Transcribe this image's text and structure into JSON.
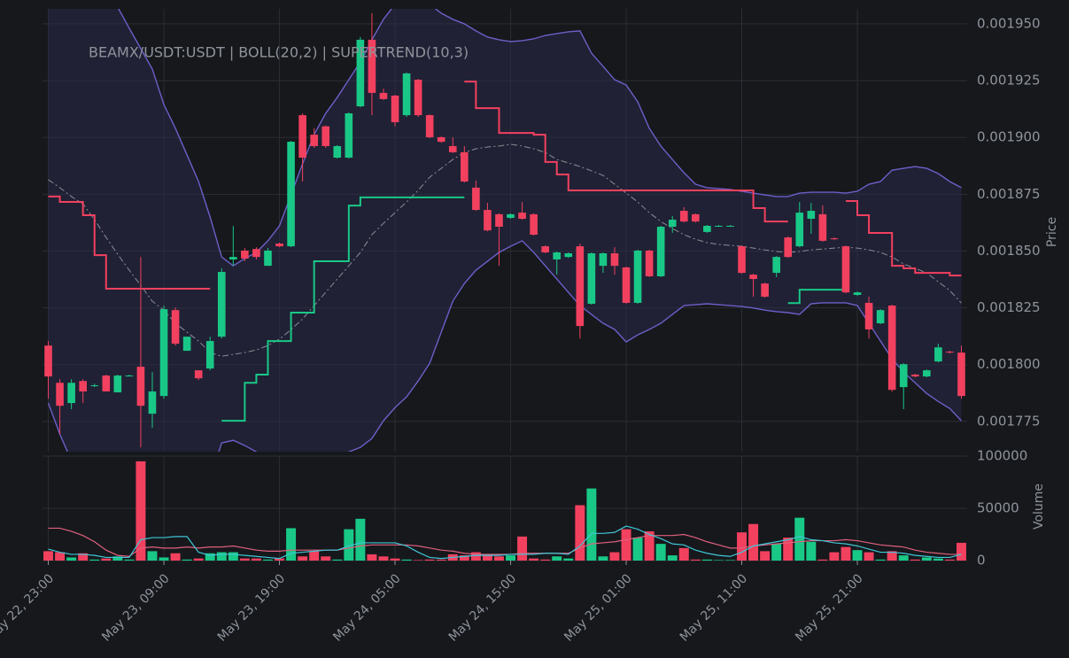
{
  "chart_data": [
    {
      "type": "candlestick",
      "title": "BEAMX/USDT:USDT | BOLL(20,2) | SUPERTREND(10,3)",
      "y_label": "Price",
      "categories": [
        "May 22, 23:00",
        null,
        null,
        null,
        null,
        null,
        null,
        null,
        null,
        null,
        "May 23, 09:00",
        null,
        null,
        null,
        null,
        null,
        null,
        null,
        null,
        null,
        "May 23, 19:00",
        null,
        null,
        null,
        null,
        null,
        null,
        null,
        null,
        null,
        "May 24, 05:00",
        null,
        null,
        null,
        null,
        null,
        null,
        null,
        null,
        null,
        "May 24, 15:00",
        null,
        null,
        null,
        null,
        null,
        null,
        null,
        null,
        null,
        "May 25, 01:00",
        null,
        null,
        null,
        null,
        null,
        null,
        null,
        null,
        null,
        "May 25, 11:00",
        null,
        null,
        null,
        null,
        null,
        null,
        null,
        null,
        null,
        "May 25, 21:00",
        null,
        null,
        null,
        null,
        null,
        null,
        null,
        null,
        null
      ],
      "open": [
        0.0018084,
        0.001792,
        0.0017831,
        0.0017928,
        0.0017909,
        0.0017952,
        0.0017878,
        0.0017952,
        0.0017991,
        0.0017784,
        0.0017862,
        0.001824,
        0.0018061,
        0.0017975,
        0.0017983,
        0.0018123,
        0.0018463,
        0.0018502,
        0.0018509,
        0.0018435,
        0.0018533,
        0.0018521,
        0.0019098,
        0.0019012,
        0.0019049,
        0.0018911,
        0.0018911,
        0.0019137,
        0.001943,
        0.0019196,
        0.0019184,
        0.0019098,
        0.0019254,
        0.0019098,
        0.0019001,
        0.0018962,
        0.0018935,
        0.0018779,
        0.0018681,
        0.0018662,
        0.0018646,
        0.0018669,
        0.0018662,
        0.0018521,
        0.0018463,
        0.0018474,
        0.0018521,
        0.0018268,
        0.0018435,
        0.001849,
        0.0018428,
        0.0018272,
        0.0018502,
        0.0018389,
        0.0018607,
        0.0018677,
        0.0018662,
        0.0018584,
        0.0018611,
        0.0018611,
        0.0018521,
        0.0018396,
        0.0018357,
        0.0018404,
        0.001856,
        0.0018521,
        0.0018642,
        0.0018662,
        0.0018556,
        0.0018521,
        0.0018307,
        0.0018272,
        0.0018182,
        0.001826,
        0.0017901,
        0.0017956,
        0.0017948,
        0.0018014,
        0.0018057,
        0.0018053
      ],
      "high": [
        0.0018104,
        0.0017936,
        0.0017936,
        0.0017936,
        0.0017916,
        0.0017956,
        0.0017956,
        0.0017956,
        0.0018474,
        0.0017967,
        0.001826,
        0.0018252,
        0.0018123,
        0.0017975,
        0.0018123,
        0.0018424,
        0.001861,
        0.0018513,
        0.0018517,
        0.0018513,
        0.0018537,
        0.0018985,
        0.0019106,
        0.0019041,
        0.0019053,
        0.0018966,
        0.001911,
        0.0019442,
        0.0019547,
        0.0019215,
        0.0019188,
        0.0019286,
        0.0019258,
        0.0019102,
        0.0019005,
        0.0019001,
        0.0018962,
        0.001881,
        0.0018712,
        0.0018666,
        0.0018666,
        0.0018716,
        0.0018666,
        0.0018525,
        0.0018498,
        0.0018494,
        0.0018533,
        0.0018494,
        0.0018494,
        0.0018517,
        0.0018432,
        0.0018506,
        0.0018506,
        0.0018611,
        0.0018654,
        0.0018693,
        0.0018666,
        0.0018615,
        0.0018615,
        0.0018615,
        0.0018525,
        0.00184,
        0.0018361,
        0.0018478,
        0.0018564,
        0.0018716,
        0.0018712,
        0.0018701,
        0.001856,
        0.0018525,
        0.0018322,
        0.0018299,
        0.0018244,
        0.0018264,
        0.0018006,
        0.001796,
        0.0017979,
        0.0018092,
        0.0018061,
        0.0018084
      ],
      "low": [
        0.001785,
        0.0017694,
        0.0017804,
        0.0017831,
        0.0017901,
        0.0017882,
        0.0017878,
        0.0017948,
        0.0017636,
        0.0017722,
        0.001785,
        0.0018084,
        0.0018061,
        0.0017932,
        0.0017975,
        0.0018115,
        0.0018435,
        0.0018455,
        0.0018463,
        0.0018435,
        0.0018517,
        0.0018517,
        0.0018806,
        0.0018954,
        0.0018954,
        0.0018907,
        0.0018907,
        0.0019133,
        0.0019098,
        0.0019165,
        0.0019049,
        0.001909,
        0.001909,
        0.0018997,
        0.0018977,
        0.0018931,
        0.0018802,
        0.0018677,
        0.0018587,
        0.0018435,
        0.0018642,
        0.0018638,
        0.0018568,
        0.001849,
        0.0018396,
        0.001847,
        0.0018115,
        0.0018264,
        0.0018404,
        0.0018396,
        0.0018268,
        0.0018268,
        0.0018385,
        0.0018385,
        0.001858,
        0.0018626,
        0.0018626,
        0.001858,
        0.0018607,
        0.0018607,
        0.00184,
        0.0018299,
        0.0018295,
        0.0018385,
        0.001847,
        0.0018517,
        0.0018576,
        0.0018541,
        0.0018548,
        0.0018314,
        0.0018303,
        0.0018115,
        0.0018178,
        0.0017881,
        0.0017804,
        0.0017944,
        0.0017944,
        0.001801,
        0.0018049,
        0.001785
      ],
      "close": [
        0.0017948,
        0.0017819,
        0.001792,
        0.0017882,
        0.0017909,
        0.0017882,
        0.0017952,
        0.0017952,
        0.0017819,
        0.0017882,
        0.0018244,
        0.0018092,
        0.0018123,
        0.001794,
        0.0018104,
        0.0018408,
        0.0018474,
        0.0018467,
        0.0018474,
        0.0018502,
        0.0018521,
        0.0018981,
        0.0018911,
        0.0018962,
        0.0018962,
        0.0018962,
        0.0019106,
        0.001943,
        0.0019196,
        0.0019169,
        0.0019067,
        0.0019282,
        0.0019098,
        0.0019001,
        0.0018981,
        0.0018935,
        0.0018806,
        0.0018681,
        0.0018591,
        0.0018607,
        0.0018662,
        0.0018642,
        0.0018572,
        0.0018494,
        0.0018494,
        0.001849,
        0.001817,
        0.001849,
        0.001849,
        0.0018435,
        0.0018272,
        0.0018502,
        0.0018389,
        0.0018607,
        0.0018638,
        0.001863,
        0.001863,
        0.0018611,
        0.0018611,
        0.0018611,
        0.0018404,
        0.0018377,
        0.0018299,
        0.0018474,
        0.0018474,
        0.0018669,
        0.0018677,
        0.0018545,
        0.0018552,
        0.0018318,
        0.0018318,
        0.0018155,
        0.001824,
        0.0017889,
        0.0018002,
        0.0017948,
        0.0017975,
        0.0018076,
        0.0018053,
        0.0017862
      ],
      "boll_upper": [
        0.0020128,
        0.0020034,
        0.0019941,
        0.0019847,
        0.0019754,
        0.001966,
        0.0019574,
        0.0019481,
        0.0019391,
        0.0019301,
        0.0019145,
        0.001904,
        0.0018923,
        0.0018806,
        0.001865,
        0.0018474,
        0.0018435,
        0.0018467,
        0.0018494,
        0.0018545,
        0.0018611,
        0.0018747,
        0.0018884,
        0.0019013,
        0.0019106,
        0.0019176,
        0.0019254,
        0.0019332,
        0.001943,
        0.001952,
        0.0019586,
        0.0019625,
        0.0019625,
        0.0019586,
        0.0019547,
        0.001952,
        0.00195,
        0.0019469,
        0.0019442,
        0.001943,
        0.0019422,
        0.0019426,
        0.0019434,
        0.0019449,
        0.0019457,
        0.0019465,
        0.0019469,
        0.0019371,
        0.0019313,
        0.0019254,
        0.0019231,
        0.0019157,
        0.001904,
        0.0018962,
        0.0018903,
        0.0018845,
        0.0018794,
        0.0018779,
        0.0018775,
        0.0018771,
        0.0018763,
        0.0018755,
        0.0018747,
        0.001874,
        0.001874,
        0.0018755,
        0.0018759,
        0.0018759,
        0.0018759,
        0.0018755,
        0.0018763,
        0.0018794,
        0.0018806,
        0.0018856,
        0.0018864,
        0.0018872,
        0.0018864,
        0.0018841,
        0.0018806,
        0.0018779
      ],
      "boll_middle": [
        0.0018814,
        0.0018779,
        0.001874,
        0.0018708,
        0.0018638,
        0.001856,
        0.0018486,
        0.0018416,
        0.0018349,
        0.0018279,
        0.001824,
        0.0018182,
        0.0018143,
        0.0018104,
        0.0018053,
        0.0018037,
        0.0018045,
        0.0018053,
        0.0018065,
        0.0018084,
        0.0018112,
        0.0018154,
        0.0018201,
        0.001826,
        0.0018318,
        0.0018377,
        0.0018435,
        0.0018494,
        0.0018572,
        0.0018622,
        0.0018669,
        0.0018716,
        0.0018767,
        0.0018825,
        0.0018864,
        0.0018903,
        0.0018934,
        0.001895,
        0.0018958,
        0.0018962,
        0.001897,
        0.0018962,
        0.001895,
        0.0018934,
        0.0018903,
        0.0018888,
        0.0018872,
        0.0018853,
        0.0018833,
        0.0018794,
        0.0018755,
        0.0018716,
        0.0018669,
        0.001863,
        0.0018599,
        0.0018572,
        0.0018552,
        0.0018537,
        0.0018529,
        0.0018525,
        0.0018521,
        0.0018513,
        0.0018505,
        0.0018498,
        0.0018494,
        0.0018498,
        0.0018505,
        0.0018509,
        0.0018513,
        0.0018517,
        0.0018513,
        0.0018505,
        0.0018494,
        0.0018474,
        0.0018443,
        0.0018424,
        0.0018404,
        0.0018365,
        0.0018326,
        0.0018271
      ],
      "boll_lower": [
        0.0017831,
        0.0017694,
        0.0017577,
        0.0017499,
        0.0017441,
        0.0017402,
        0.0017382,
        0.0017363,
        0.0017304,
        0.0017265,
        0.0017246,
        0.0017265,
        0.0017304,
        0.0017382,
        0.0017499,
        0.0017655,
        0.0017667,
        0.0017644,
        0.0017616,
        0.0017577,
        0.0017558,
        0.0017538,
        0.0017531,
        0.0017546,
        0.0017577,
        0.0017597,
        0.0017616,
        0.0017636,
        0.0017675,
        0.0017753,
        0.0017811,
        0.0017858,
        0.0017928,
        0.0018006,
        0.0018143,
        0.0018279,
        0.0018357,
        0.0018416,
        0.0018455,
        0.0018494,
        0.0018521,
        0.0018545,
        0.0018494,
        0.0018435,
        0.0018377,
        0.0018318,
        0.001826,
        0.0018221,
        0.0018182,
        0.0018155,
        0.00181,
        0.0018131,
        0.0018155,
        0.0018182,
        0.0018221,
        0.001826,
        0.0018264,
        0.0018268,
        0.0018264,
        0.001826,
        0.0018256,
        0.0018249,
        0.001824,
        0.0018233,
        0.0018229,
        0.0018221,
        0.0018268,
        0.0018272,
        0.0018272,
        0.0018272,
        0.001826,
        0.0018182,
        0.0018104,
        0.0018026,
        0.0017967,
        0.001792,
        0.0017873,
        0.0017838,
        0.0017807,
        0.0017753
      ],
      "supertrend_down": [
        0.001874,
        0.0018716,
        0.0018716,
        0.0018658,
        0.0018482,
        0.0018334,
        0.0018334,
        0.0018334,
        0.0018334,
        0.0018334,
        0.0018334,
        0.0018334,
        0.0018334,
        0.0018334,
        0.0018334,
        null,
        null,
        null,
        null,
        null,
        null,
        null,
        null,
        null,
        null,
        null,
        null,
        null,
        null,
        null,
        null,
        null,
        null,
        null,
        null,
        null,
        0.0019246,
        0.0019129,
        0.0019129,
        0.001902,
        0.001902,
        0.001902,
        0.0019012,
        0.0018892,
        0.0018837,
        0.0018767,
        0.0018767,
        0.0018767,
        0.0018767,
        0.0018767,
        0.0018767,
        0.0018767,
        0.0018767,
        0.0018767,
        0.0018767,
        0.0018767,
        0.0018767,
        0.0018767,
        0.0018767,
        0.0018767,
        0.0018767,
        0.0018689,
        0.001863,
        0.001863,
        0.001863,
        null,
        null,
        null,
        null,
        0.001872,
        0.0018658,
        0.001858,
        0.001858,
        0.0018435,
        0.0018424,
        0.0018404,
        0.0018404,
        0.0018404,
        0.0018392,
        0.0018392
      ],
      "supertrend_up": [
        null,
        null,
        null,
        null,
        null,
        null,
        null,
        null,
        null,
        null,
        null,
        null,
        null,
        null,
        null,
        0.0017753,
        0.0017753,
        0.001792,
        0.0017956,
        0.0018104,
        0.0018104,
        0.0018229,
        0.0018229,
        0.0018455,
        0.0018455,
        0.0018455,
        0.00187,
        0.0018736,
        0.0018736,
        0.0018736,
        0.0018736,
        0.0018736,
        0.0018736,
        0.0018736,
        0.0018736,
        0.0018736,
        0.0018736,
        null,
        null,
        null,
        null,
        null,
        null,
        null,
        null,
        null,
        null,
        null,
        null,
        null,
        null,
        null,
        null,
        null,
        null,
        null,
        null,
        null,
        null,
        null,
        null,
        null,
        null,
        null,
        0.0018271,
        0.001833,
        0.001833,
        0.001833,
        0.001833,
        0.001833,
        null,
        null,
        null,
        null,
        null,
        null,
        null,
        null,
        null,
        null
      ],
      "colors": {
        "up": "#19c887",
        "down": "#f2405f",
        "band": "#6d5fc9",
        "band_fill": "#2a2a48",
        "middle": "#8c8c96",
        "supertrend_up": "#19c887",
        "supertrend_down": "#f2405f"
      },
      "ylim": [
        0.0017617,
        0.0019566
      ],
      "yticks": [
        {
          "value": 0.001775,
          "label": "0.001775"
        },
        {
          "value": 0.0018,
          "label": "0.001800"
        },
        {
          "value": 0.001825,
          "label": "0.001825"
        },
        {
          "value": 0.00185,
          "label": "0.001850"
        },
        {
          "value": 0.001875,
          "label": "0.001875"
        },
        {
          "value": 0.0019,
          "label": "0.001900"
        },
        {
          "value": 0.001925,
          "label": "0.001925"
        },
        {
          "value": 0.00195,
          "label": "0.001950"
        }
      ],
      "grid": true
    },
    {
      "type": "bar",
      "y_label": "Volume",
      "values": [
        9000,
        8000,
        3000,
        7000,
        1000,
        2000,
        4000,
        1000,
        95000,
        9000,
        3000,
        7000,
        1000,
        2000,
        7000,
        8000,
        8000,
        2000,
        2000,
        1000,
        2000,
        31000,
        4000,
        9000,
        4000,
        1000,
        30000,
        40000,
        6000,
        4000,
        2000,
        1000,
        500,
        1000,
        1000,
        6000,
        5000,
        8000,
        5000,
        4000,
        5000,
        23000,
        2000,
        1000,
        4000,
        2000,
        53000,
        69000,
        4000,
        8000,
        30000,
        22000,
        28000,
        16000,
        5000,
        12000,
        1000,
        1000,
        500,
        500,
        27000,
        35000,
        9000,
        16000,
        22000,
        41000,
        18000,
        1000,
        8000,
        13000,
        10000,
        8000,
        1000,
        9000,
        5000,
        1000,
        3000,
        2000,
        1000,
        17000
      ],
      "ma_slow": [
        31000,
        31000,
        28000,
        24000,
        18000,
        10000,
        5000,
        4000,
        12000,
        13000,
        12000,
        12000,
        13000,
        12000,
        13000,
        13000,
        14000,
        12000,
        10000,
        9000,
        9000,
        10000,
        10000,
        10000,
        10000,
        10000,
        12000,
        14000,
        15000,
        15000,
        15000,
        15000,
        14000,
        12000,
        10000,
        9000,
        7000,
        6000,
        6000,
        6000,
        6000,
        7000,
        7000,
        7000,
        7000,
        7000,
        12000,
        16000,
        17000,
        18000,
        20000,
        22000,
        24000,
        24000,
        24000,
        25000,
        22000,
        18000,
        15000,
        12000,
        12000,
        14000,
        15000,
        16000,
        17000,
        18000,
        19000,
        19000,
        19000,
        20000,
        19000,
        17000,
        15000,
        14000,
        13000,
        10000,
        8000,
        7000,
        6000,
        6000
      ],
      "ma_fast": [
        11000,
        8000,
        6000,
        6000,
        5000,
        3000,
        3000,
        3000,
        20000,
        22000,
        22000,
        23000,
        23000,
        8000,
        5000,
        6000,
        6000,
        5000,
        4000,
        3000,
        2000,
        7000,
        8000,
        9000,
        10000,
        10000,
        14000,
        17000,
        17000,
        17000,
        17000,
        14000,
        8000,
        3000,
        2000,
        3000,
        4000,
        5000,
        5000,
        5000,
        6000,
        6000,
        6000,
        7000,
        7000,
        6000,
        14000,
        26000,
        26000,
        27000,
        33000,
        30000,
        25000,
        21000,
        16000,
        15000,
        10000,
        7000,
        5000,
        4000,
        8000,
        14000,
        16000,
        18000,
        20000,
        23000,
        20000,
        19000,
        17000,
        16000,
        14000,
        11000,
        8000,
        8000,
        7000,
        5000,
        4000,
        3000,
        3000,
        6000
      ],
      "colors": {
        "ma_slow": "#e0607e",
        "ma_fast": "#3fc6d6"
      },
      "ylim": [
        0,
        100000
      ],
      "yticks": [
        0,
        50000,
        100000
      ],
      "grid": true
    }
  ]
}
